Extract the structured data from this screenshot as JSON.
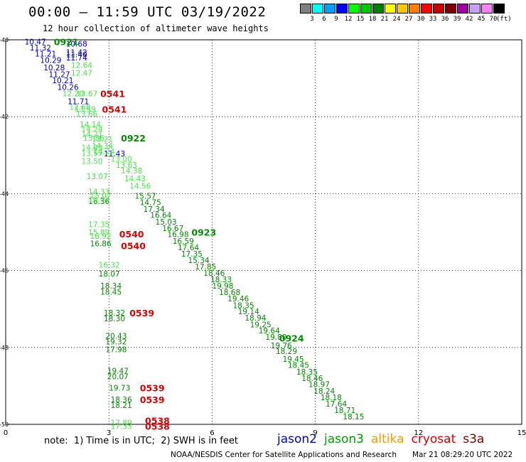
{
  "header": {
    "title": "00:00 – 11:59 UTC 03/19/2022",
    "subtitle": "12 hour collection of altimeter wave heights"
  },
  "colorbar": {
    "swatches": [
      "#808080",
      "#00ffff",
      "#00a0ff",
      "#0000ff",
      "#00ff00",
      "#00c800",
      "#008000",
      "#ffff00",
      "#ffc800",
      "#ff8000",
      "#ff0000",
      "#c80000",
      "#800000",
      "#a000a0",
      "#c8a0ff",
      "#ff80ff",
      "#000000"
    ],
    "labels": [
      "3",
      "6",
      "9",
      "12",
      "15",
      "18",
      "21",
      "24",
      "27",
      "30",
      "33",
      "36",
      "39",
      "42",
      "45",
      "70"
    ],
    "unit": "(ft)"
  },
  "footer": {
    "note": "note:  1) Time is in UTC;  2) SWH is in feet",
    "satellites": [
      {
        "name": "jason2",
        "color": "#0000cc"
      },
      {
        "name": "jason3",
        "color": "#00a000"
      },
      {
        "name": "altika",
        "color": "#ff9900"
      },
      {
        "name": "cryosat",
        "color": "#dd0000"
      },
      {
        "name": "s3a",
        "color": "#800000"
      }
    ],
    "credit": "NOAA/NESDIS Center for Satellite Applications and Research",
    "generated": "Mar 21 08:29:20 UTC 2022"
  },
  "chart_data": {
    "type": "scatter",
    "title": "00:00 – 11:59 UTC 03/19/2022",
    "subtitle": "12 hour collection of altimeter wave heights",
    "xlabel": "",
    "ylabel": "",
    "xlim": [
      0,
      15
    ],
    "ylim": [
      -50,
      -40
    ],
    "x_ticks": [
      "0",
      "3",
      "6",
      "9",
      "12",
      "15"
    ],
    "y_ticks": [
      "-40",
      "-42",
      "-44",
      "-46",
      "-48",
      "-50"
    ],
    "grid": true,
    "colors": {
      "jason2": "#0000cc",
      "jason3": "#008c00",
      "jason3_light": "#4de64d",
      "cryosat": "#dd0000"
    },
    "time_labels": [
      {
        "text": "0921",
        "x": 1.4,
        "y": -40.05,
        "series": "jason3"
      },
      {
        "text": "0541",
        "x": 2.75,
        "y": -41.4,
        "series": "cryosat"
      },
      {
        "text": "0541",
        "x": 2.8,
        "y": -41.8,
        "series": "cryosat"
      },
      {
        "text": "0922",
        "x": 3.35,
        "y": -42.55,
        "series": "jason3"
      },
      {
        "text": "0923",
        "x": 5.4,
        "y": -45.0,
        "series": "jason3"
      },
      {
        "text": "0540",
        "x": 3.3,
        "y": -45.05,
        "series": "cryosat"
      },
      {
        "text": "0540",
        "x": 3.35,
        "y": -45.35,
        "series": "cryosat"
      },
      {
        "text": "0539",
        "x": 3.6,
        "y": -47.1,
        "series": "cryosat"
      },
      {
        "text": "0924",
        "x": 7.95,
        "y": -47.75,
        "series": "jason3"
      },
      {
        "text": "0539",
        "x": 3.9,
        "y": -49.05,
        "series": "cryosat"
      },
      {
        "text": "0539",
        "x": 3.9,
        "y": -49.35,
        "series": "cryosat"
      },
      {
        "text": "0538",
        "x": 4.05,
        "y": -49.9,
        "series": "cryosat"
      },
      {
        "text": "0538",
        "x": 4.05,
        "y": -50.05,
        "series": "cryosat"
      }
    ],
    "series": [
      {
        "name": "jason2",
        "color": "#0000cc",
        "points": [
          {
            "x": 0.55,
            "y": -40.05,
            "v": "10.47"
          },
          {
            "x": 1.75,
            "y": -40.1,
            "v": "10.68"
          },
          {
            "x": 0.7,
            "y": -40.2,
            "v": "11.32"
          },
          {
            "x": 0.85,
            "y": -40.36,
            "v": "11.21"
          },
          {
            "x": 1.75,
            "y": -40.32,
            "v": "11.42"
          },
          {
            "x": 1.75,
            "y": -40.38,
            "v": "11.40"
          },
          {
            "x": 1.75,
            "y": -40.46,
            "v": "11.74"
          },
          {
            "x": 1.0,
            "y": -40.53,
            "v": "10.29"
          },
          {
            "x": 1.1,
            "y": -40.72,
            "v": "10.28"
          },
          {
            "x": 1.25,
            "y": -40.9,
            "v": "11.27"
          },
          {
            "x": 1.35,
            "y": -41.05,
            "v": "10.21"
          },
          {
            "x": 1.5,
            "y": -41.23,
            "v": "10.26"
          },
          {
            "x": 1.8,
            "y": -41.6,
            "v": "11.71"
          },
          {
            "x": 2.85,
            "y": -42.96,
            "v": "11.43"
          }
        ]
      },
      {
        "name": "jason3",
        "color": "#008c00",
        "points": [
          {
            "x": 3.75,
            "y": -44.06,
            "v": "15.57"
          },
          {
            "x": 3.9,
            "y": -44.22,
            "v": "14.75"
          },
          {
            "x": 4.0,
            "y": -44.4,
            "v": "17.34"
          },
          {
            "x": 4.2,
            "y": -44.56,
            "v": "16.64"
          },
          {
            "x": 4.35,
            "y": -44.73,
            "v": "15.03"
          },
          {
            "x": 4.55,
            "y": -44.9,
            "v": "16.67"
          },
          {
            "x": 4.7,
            "y": -45.06,
            "v": "16.98"
          },
          {
            "x": 4.85,
            "y": -45.23,
            "v": "16.59"
          },
          {
            "x": 5.0,
            "y": -45.4,
            "v": "17.64"
          },
          {
            "x": 5.1,
            "y": -45.56,
            "v": "17.35"
          },
          {
            "x": 5.3,
            "y": -45.73,
            "v": "15.34"
          },
          {
            "x": 5.5,
            "y": -45.9,
            "v": "17.85"
          },
          {
            "x": 5.75,
            "y": -46.06,
            "v": "18.46"
          },
          {
            "x": 5.95,
            "y": -46.23,
            "v": "18.33"
          },
          {
            "x": 6.0,
            "y": -46.4,
            "v": "19.98"
          },
          {
            "x": 6.2,
            "y": -46.56,
            "v": "18.68"
          },
          {
            "x": 6.45,
            "y": -46.73,
            "v": "19.46"
          },
          {
            "x": 6.6,
            "y": -46.9,
            "v": "18.35"
          },
          {
            "x": 6.75,
            "y": -47.06,
            "v": "19.14"
          },
          {
            "x": 6.95,
            "y": -47.23,
            "v": "18.94"
          },
          {
            "x": 7.1,
            "y": -47.4,
            "v": "19.25"
          },
          {
            "x": 7.35,
            "y": -47.56,
            "v": "19.64"
          },
          {
            "x": 7.55,
            "y": -47.73,
            "v": "19.80"
          },
          {
            "x": 7.7,
            "y": -47.95,
            "v": "19.76"
          },
          {
            "x": 7.85,
            "y": -48.1,
            "v": "18.29"
          },
          {
            "x": 8.05,
            "y": -48.3,
            "v": "19.45"
          },
          {
            "x": 8.2,
            "y": -48.46,
            "v": "18.45"
          },
          {
            "x": 8.45,
            "y": -48.63,
            "v": "18.35"
          },
          {
            "x": 8.6,
            "y": -48.8,
            "v": "18.46"
          },
          {
            "x": 8.8,
            "y": -48.96,
            "v": "18.97"
          },
          {
            "x": 8.95,
            "y": -49.13,
            "v": "18.24"
          },
          {
            "x": 9.15,
            "y": -49.3,
            "v": "18.18"
          },
          {
            "x": 9.3,
            "y": -49.46,
            "v": "17.64"
          },
          {
            "x": 9.55,
            "y": -49.63,
            "v": "18.71"
          },
          {
            "x": 9.8,
            "y": -49.8,
            "v": "18.15"
          },
          {
            "x": 2.4,
            "y": -44.2,
            "v": "16.36"
          },
          {
            "x": 2.45,
            "y": -45.3,
            "v": "16.86"
          },
          {
            "x": 2.7,
            "y": -46.08,
            "v": "18.07"
          },
          {
            "x": 2.75,
            "y": -46.4,
            "v": "18.34"
          },
          {
            "x": 2.75,
            "y": -46.55,
            "v": "18.45"
          },
          {
            "x": 2.85,
            "y": -47.1,
            "v": "18.32"
          },
          {
            "x": 2.85,
            "y": -47.25,
            "v": "18.30"
          },
          {
            "x": 2.9,
            "y": -47.7,
            "v": "20.43"
          },
          {
            "x": 2.9,
            "y": -47.85,
            "v": "19.32"
          },
          {
            "x": 2.9,
            "y": -48.05,
            "v": "17.98"
          },
          {
            "x": 2.95,
            "y": -48.6,
            "v": "19.47"
          },
          {
            "x": 2.95,
            "y": -48.75,
            "v": "20.07"
          },
          {
            "x": 3.0,
            "y": -49.05,
            "v": "19.73"
          },
          {
            "x": 3.05,
            "y": -49.35,
            "v": "18.36"
          },
          {
            "x": 3.05,
            "y": -49.5,
            "v": "18.21"
          }
        ]
      },
      {
        "name": "jason3",
        "color": "#4de64d",
        "points": [
          {
            "x": 1.9,
            "y": -40.66,
            "v": "12.64"
          },
          {
            "x": 1.9,
            "y": -40.86,
            "v": "12.47"
          },
          {
            "x": 1.65,
            "y": -41.4,
            "v": "12.20"
          },
          {
            "x": 2.05,
            "y": -41.4,
            "v": "13.67"
          },
          {
            "x": 1.85,
            "y": -41.75,
            "v": "12.68"
          },
          {
            "x": 2.0,
            "y": -41.8,
            "v": "13.59"
          },
          {
            "x": 2.05,
            "y": -41.92,
            "v": "13.66"
          },
          {
            "x": 2.15,
            "y": -42.2,
            "v": "14.14"
          },
          {
            "x": 2.2,
            "y": -42.32,
            "v": "14.24"
          },
          {
            "x": 2.2,
            "y": -42.45,
            "v": "14.21"
          },
          {
            "x": 2.25,
            "y": -42.55,
            "v": "13.86"
          },
          {
            "x": 2.5,
            "y": -42.58,
            "v": "13.21"
          },
          {
            "x": 2.5,
            "y": -42.75,
            "v": "14.34"
          },
          {
            "x": 2.2,
            "y": -42.8,
            "v": "14.33"
          },
          {
            "x": 2.2,
            "y": -42.95,
            "v": "13.57"
          },
          {
            "x": 2.55,
            "y": -42.9,
            "v": "14.24"
          },
          {
            "x": 3.05,
            "y": -43.1,
            "v": "13.00"
          },
          {
            "x": 2.2,
            "y": -43.15,
            "v": "13.50"
          },
          {
            "x": 3.2,
            "y": -43.25,
            "v": "13.63"
          },
          {
            "x": 3.35,
            "y": -43.4,
            "v": "14.38"
          },
          {
            "x": 3.45,
            "y": -43.6,
            "v": "14.43"
          },
          {
            "x": 2.35,
            "y": -43.55,
            "v": "13.07"
          },
          {
            "x": 3.6,
            "y": -43.8,
            "v": "14.56"
          },
          {
            "x": 2.4,
            "y": -43.95,
            "v": "14.33"
          },
          {
            "x": 2.45,
            "y": -44.05,
            "v": "15.07"
          },
          {
            "x": 2.4,
            "y": -44.15,
            "v": "16.07"
          },
          {
            "x": 2.4,
            "y": -44.8,
            "v": "17.35"
          },
          {
            "x": 2.4,
            "y": -45.0,
            "v": "15.89"
          },
          {
            "x": 2.45,
            "y": -45.1,
            "v": "16.92"
          },
          {
            "x": 2.7,
            "y": -45.85,
            "v": "16.32"
          },
          {
            "x": 3.05,
            "y": -49.95,
            "v": "17.89"
          },
          {
            "x": 3.05,
            "y": -50.05,
            "v": "17.33"
          }
        ]
      }
    ]
  }
}
